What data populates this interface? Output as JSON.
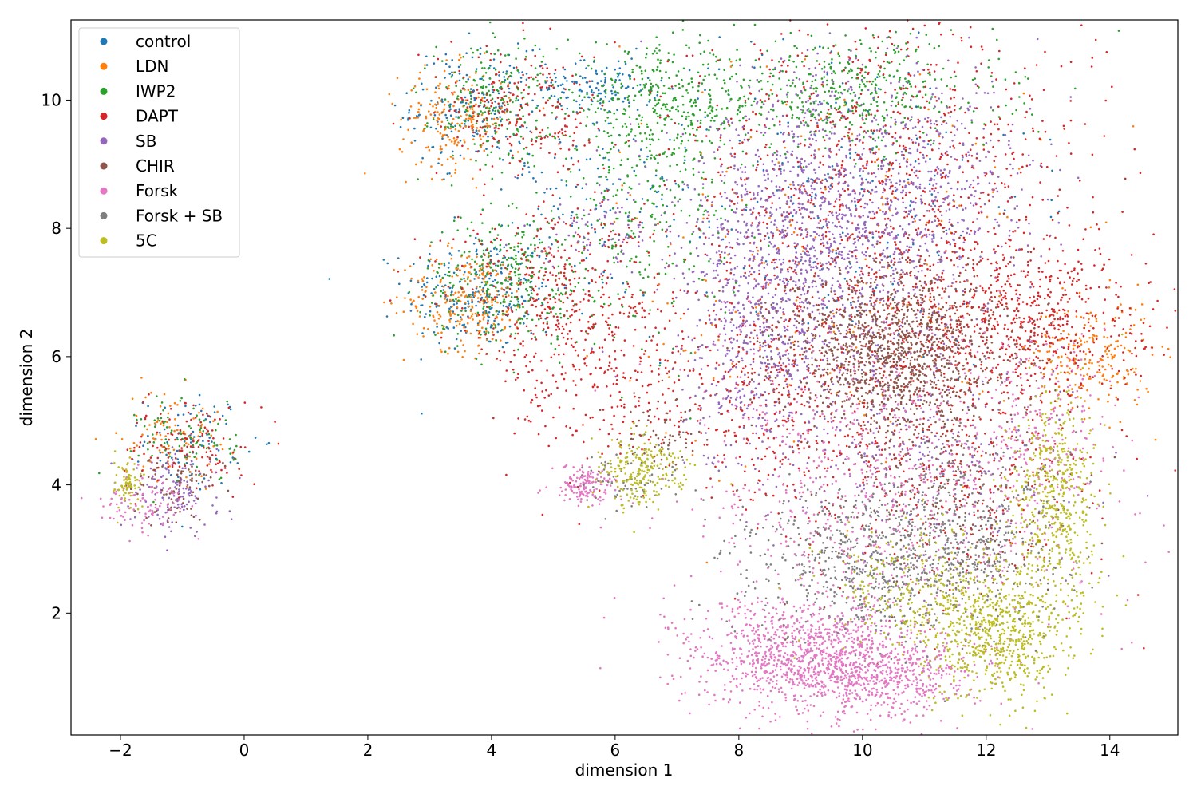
{
  "chart_data": {
    "type": "scatter",
    "xlabel": "dimension 1",
    "ylabel": "dimension 2",
    "xlim": [
      -2.8,
      15.1
    ],
    "ylim": [
      0.1,
      11.25
    ],
    "xticks": [
      -2,
      0,
      2,
      4,
      6,
      8,
      10,
      12,
      14
    ],
    "xtick_labels": [
      "−2",
      "0",
      "2",
      "4",
      "6",
      "8",
      "10",
      "12",
      "14"
    ],
    "yticks": [
      2,
      4,
      6,
      8,
      10
    ],
    "ytick_labels": [
      "2",
      "4",
      "6",
      "8",
      "10"
    ],
    "legend_position": "top-left",
    "grid": false,
    "series": [
      {
        "name": "control",
        "color": "#1f77b4",
        "clusters": [
          {
            "cx": 3.8,
            "cy": 7.0,
            "sx": 0.6,
            "sy": 0.45,
            "n": 260
          },
          {
            "cx": 3.7,
            "cy": 9.9,
            "sx": 0.5,
            "sy": 0.45,
            "n": 200
          },
          {
            "cx": 5.7,
            "cy": 10.2,
            "sx": 0.5,
            "sy": 0.2,
            "n": 120
          },
          {
            "cx": -0.8,
            "cy": 4.7,
            "sx": 0.4,
            "sy": 0.35,
            "n": 90
          },
          {
            "cx": 5.5,
            "cy": 8.6,
            "sx": 0.9,
            "sy": 0.9,
            "n": 120
          },
          {
            "cx": 9.5,
            "cy": 8.5,
            "sx": 1.6,
            "sy": 1.4,
            "n": 200
          }
        ]
      },
      {
        "name": "LDN",
        "color": "#ff7f0e",
        "clusters": [
          {
            "cx": 3.6,
            "cy": 6.9,
            "sx": 0.5,
            "sy": 0.4,
            "n": 250
          },
          {
            "cx": 3.4,
            "cy": 9.7,
            "sx": 0.45,
            "sy": 0.4,
            "n": 200
          },
          {
            "cx": 13.7,
            "cy": 6.0,
            "sx": 0.5,
            "sy": 0.45,
            "n": 220
          },
          {
            "cx": -1.2,
            "cy": 4.8,
            "sx": 0.4,
            "sy": 0.35,
            "n": 90
          },
          {
            "cx": 9.5,
            "cy": 7.5,
            "sx": 1.7,
            "sy": 1.8,
            "n": 220
          }
        ]
      },
      {
        "name": "IWP2",
        "color": "#2ca02c",
        "clusters": [
          {
            "cx": 4.3,
            "cy": 7.2,
            "sx": 0.7,
            "sy": 0.5,
            "n": 320
          },
          {
            "cx": 9.8,
            "cy": 10.1,
            "sx": 1.2,
            "sy": 0.45,
            "n": 450
          },
          {
            "cx": 6.8,
            "cy": 9.9,
            "sx": 0.8,
            "sy": 0.45,
            "n": 380
          },
          {
            "cx": 6.4,
            "cy": 8.2,
            "sx": 0.8,
            "sy": 0.9,
            "n": 260
          },
          {
            "cx": 4.0,
            "cy": 10.0,
            "sx": 0.5,
            "sy": 0.5,
            "n": 200
          },
          {
            "cx": -0.9,
            "cy": 4.7,
            "sx": 0.4,
            "sy": 0.35,
            "n": 90
          }
        ]
      },
      {
        "name": "DAPT",
        "color": "#d62728",
        "clusters": [
          {
            "cx": 10.3,
            "cy": 8.5,
            "sx": 1.7,
            "sy": 1.5,
            "n": 1100
          },
          {
            "cx": 12.5,
            "cy": 6.6,
            "sx": 1.1,
            "sy": 0.6,
            "n": 600
          },
          {
            "cx": 5.0,
            "cy": 7.0,
            "sx": 0.9,
            "sy": 0.7,
            "n": 400
          },
          {
            "cx": 6.0,
            "cy": 5.6,
            "sx": 0.8,
            "sy": 0.8,
            "n": 250
          },
          {
            "cx": 4.5,
            "cy": 9.8,
            "sx": 0.7,
            "sy": 0.5,
            "n": 250
          },
          {
            "cx": 11.3,
            "cy": 4.6,
            "sx": 1.2,
            "sy": 1.1,
            "n": 500
          },
          {
            "cx": -0.9,
            "cy": 4.6,
            "sx": 0.45,
            "sy": 0.35,
            "n": 130
          },
          {
            "cx": 8.5,
            "cy": 5.5,
            "sx": 0.6,
            "sy": 1.0,
            "n": 300
          }
        ]
      },
      {
        "name": "SB",
        "color": "#9467bd",
        "clusters": [
          {
            "cx": 9.5,
            "cy": 8.0,
            "sx": 1.2,
            "sy": 1.2,
            "n": 1300
          },
          {
            "cx": 8.3,
            "cy": 6.5,
            "sx": 0.6,
            "sy": 1.1,
            "n": 500
          },
          {
            "cx": 11.2,
            "cy": 8.6,
            "sx": 0.8,
            "sy": 0.9,
            "n": 300
          },
          {
            "cx": 5.8,
            "cy": 8.0,
            "sx": 0.5,
            "sy": 0.4,
            "n": 80
          },
          {
            "cx": -1.1,
            "cy": 3.9,
            "sx": 0.35,
            "sy": 0.3,
            "n": 130
          },
          {
            "cx": 11.0,
            "cy": 4.5,
            "sx": 1.2,
            "sy": 1.0,
            "n": 300
          }
        ]
      },
      {
        "name": "CHIR",
        "color": "#8c564b",
        "clusters": [
          {
            "cx": 10.5,
            "cy": 6.1,
            "sx": 0.9,
            "sy": 0.65,
            "n": 1300
          },
          {
            "cx": 11.3,
            "cy": 3.8,
            "sx": 1.0,
            "sy": 0.8,
            "n": 250
          },
          {
            "cx": -1.1,
            "cy": 4.0,
            "sx": 0.35,
            "sy": 0.3,
            "n": 90
          },
          {
            "cx": 6.8,
            "cy": 4.8,
            "sx": 0.4,
            "sy": 0.3,
            "n": 60
          }
        ]
      },
      {
        "name": "Forsk",
        "color": "#e377c2",
        "clusters": [
          {
            "cx": 9.1,
            "cy": 1.3,
            "sx": 0.9,
            "sy": 0.45,
            "n": 1100
          },
          {
            "cx": 10.5,
            "cy": 1.0,
            "sx": 0.7,
            "sy": 0.3,
            "n": 400
          },
          {
            "cx": 5.5,
            "cy": 4.0,
            "sx": 0.25,
            "sy": 0.15,
            "n": 150
          },
          {
            "cx": 10.5,
            "cy": 3.8,
            "sx": 1.7,
            "sy": 1.2,
            "n": 700
          },
          {
            "cx": -1.6,
            "cy": 3.7,
            "sx": 0.35,
            "sy": 0.2,
            "n": 100
          },
          {
            "cx": 12.8,
            "cy": 4.9,
            "sx": 0.6,
            "sy": 0.7,
            "n": 200
          }
        ]
      },
      {
        "name": "Forsk + SB",
        "color": "#7f7f7f",
        "clusters": [
          {
            "cx": 10.2,
            "cy": 2.8,
            "sx": 1.1,
            "sy": 0.6,
            "n": 700
          },
          {
            "cx": 11.8,
            "cy": 3.2,
            "sx": 0.8,
            "sy": 0.8,
            "n": 300
          },
          {
            "cx": 6.3,
            "cy": 4.2,
            "sx": 0.4,
            "sy": 0.3,
            "n": 80
          }
        ]
      },
      {
        "name": "5C",
        "color": "#bcbd22",
        "clusters": [
          {
            "cx": 12.2,
            "cy": 1.7,
            "sx": 0.6,
            "sy": 0.5,
            "n": 700
          },
          {
            "cx": 13.1,
            "cy": 3.8,
            "sx": 0.35,
            "sy": 0.8,
            "n": 500
          },
          {
            "cx": 6.4,
            "cy": 4.2,
            "sx": 0.35,
            "sy": 0.3,
            "n": 220
          },
          {
            "cx": -1.9,
            "cy": 4.0,
            "sx": 0.12,
            "sy": 0.2,
            "n": 80
          },
          {
            "cx": 10.8,
            "cy": 2.4,
            "sx": 0.7,
            "sy": 0.5,
            "n": 250
          }
        ]
      }
    ]
  }
}
